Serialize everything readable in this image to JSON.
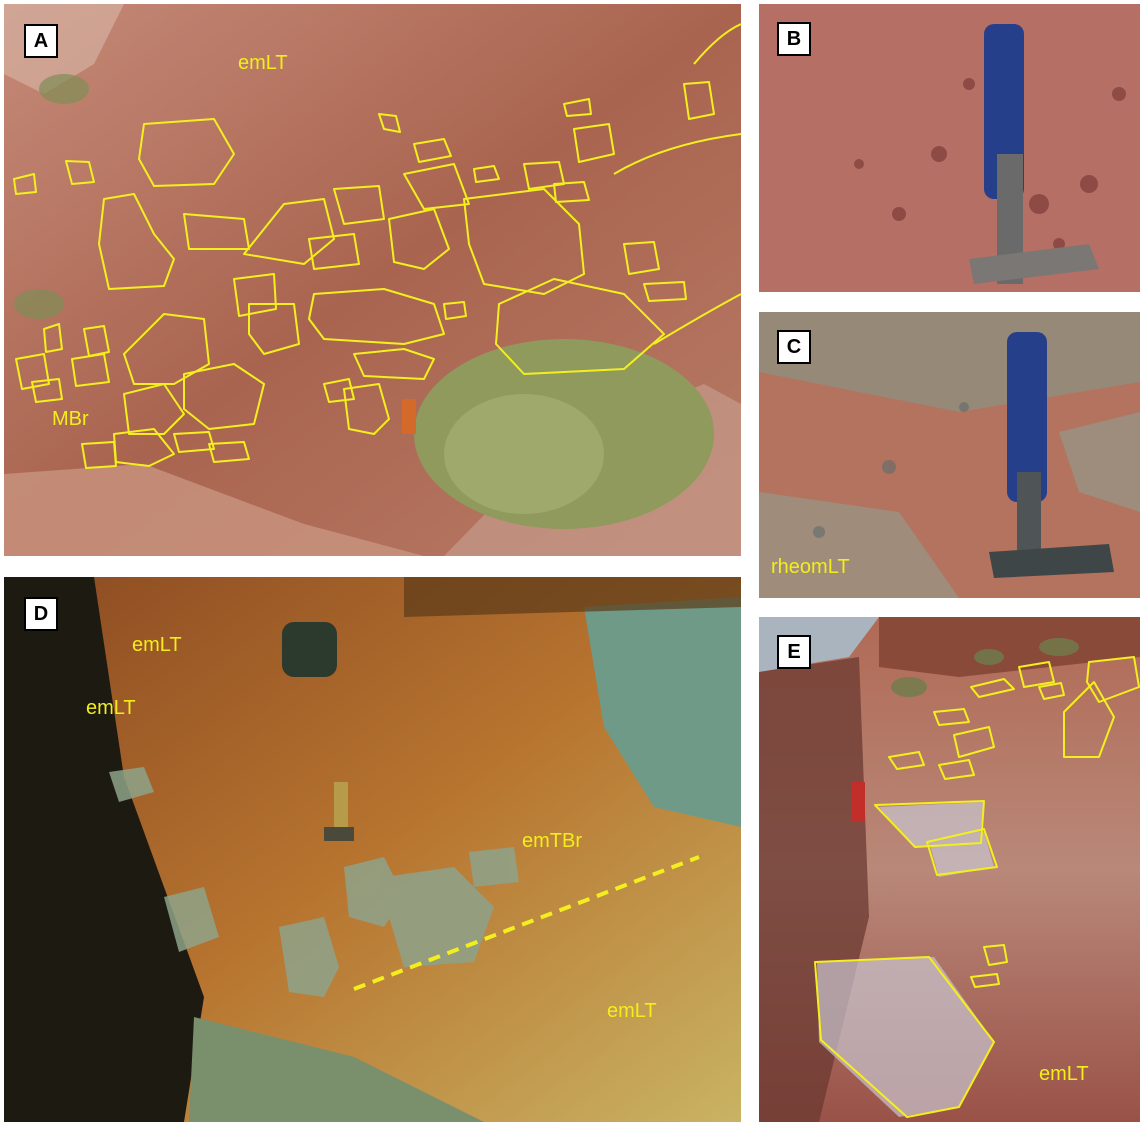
{
  "panels": {
    "a": {
      "label": "A",
      "units": [
        "emLT",
        "MBr"
      ]
    },
    "b": {
      "label": "B"
    },
    "c": {
      "label": "C",
      "units": [
        "rheomLT"
      ]
    },
    "d": {
      "label": "D",
      "units": [
        "emLT",
        "emLT",
        "emTBr",
        "emLT"
      ]
    },
    "e": {
      "label": "E",
      "units": [
        "emLT"
      ]
    }
  },
  "colors": {
    "annotation": "#f3ef1f",
    "rock": "#b06a55",
    "vegetation": "#8f9a5c"
  }
}
